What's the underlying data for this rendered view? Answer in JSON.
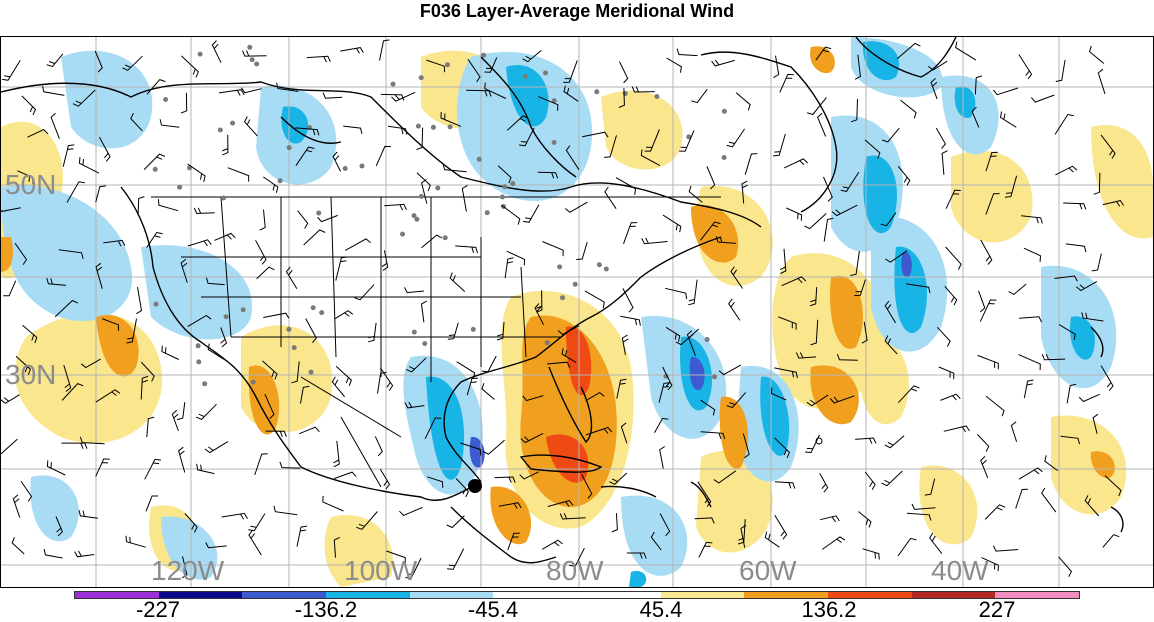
{
  "title": "F036 Layer-Average Meridional Wind",
  "lat_labels": [
    "50N",
    "30N"
  ],
  "lon_labels": [
    "120W",
    "100W",
    "80W",
    "60W",
    "40W"
  ],
  "colorbar": {
    "colors": [
      "#9b30d9",
      "#0a0a8c",
      "#3d5ad1",
      "#19b4e6",
      "#a8dcf5",
      "#ffffff",
      "#ffffff",
      "#fae68c",
      "#f0a01e",
      "#f04a14",
      "#b42828",
      "#f08cbe"
    ],
    "tick_labels": [
      "-227",
      "-136.2",
      "-45.4",
      "45.4",
      "136.2",
      "227"
    ]
  },
  "colors": {
    "strong_negative": "#3d5ad1",
    "negative": "#19b4e6",
    "weak_negative": "#a8dcf5",
    "weak_positive": "#fae68c",
    "positive": "#f0a01e",
    "strong_positive": "#f04a14",
    "grid": "#b4b4b4",
    "station_dots": "#7a7a7a"
  }
}
